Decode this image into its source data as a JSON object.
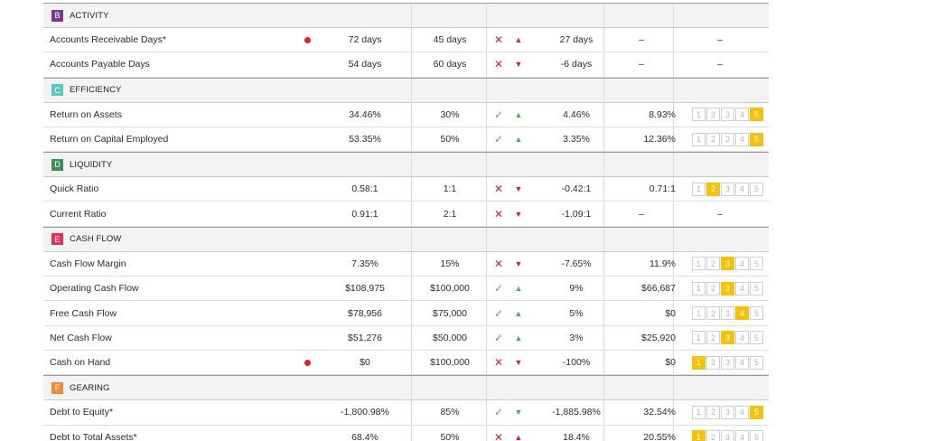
{
  "sections": [
    {
      "letter": "B",
      "title": "ACTIVITY",
      "color": "#7a3b8f",
      "rows": [
        {
          "name": "Accounts Receivable Days*",
          "alert": true,
          "actual": "72 days",
          "target": "45 days",
          "mark": "✕",
          "markType": "x",
          "arrow": "▲",
          "arrowType": "up-red",
          "variance": "27 days",
          "benchmark": "",
          "dash1": "–",
          "rating": null,
          "dash2": "–"
        },
        {
          "name": "Accounts Payable Days",
          "alert": false,
          "actual": "54 days",
          "target": "60 days",
          "mark": "✕",
          "markType": "x",
          "arrow": "▼",
          "arrowType": "down-red",
          "variance": "-6 days",
          "benchmark": "",
          "dash1": "–",
          "rating": null,
          "dash2": "–"
        }
      ]
    },
    {
      "letter": "C",
      "title": "EFFICIENCY",
      "color": "#5bc8c0",
      "rows": [
        {
          "name": "Return on Assets",
          "alert": false,
          "actual": "34.46%",
          "target": "30%",
          "mark": "✓",
          "markType": "c",
          "arrow": "▲",
          "arrowType": "up-green",
          "variance": "4.46%",
          "benchmark": "8.93%",
          "dash1": "",
          "rating": 5,
          "dash2": ""
        },
        {
          "name": "Return on Capital Employed",
          "alert": false,
          "actual": "53.35%",
          "target": "50%",
          "mark": "✓",
          "markType": "c",
          "arrow": "▲",
          "arrowType": "up-green",
          "variance": "3.35%",
          "benchmark": "12.36%",
          "dash1": "",
          "rating": 5,
          "dash2": ""
        }
      ]
    },
    {
      "letter": "D",
      "title": "LIQUIDITY",
      "color": "#3f8d5c",
      "rows": [
        {
          "name": "Quick Ratio",
          "alert": false,
          "actual": "0.58:1",
          "target": "1:1",
          "mark": "✕",
          "markType": "x",
          "arrow": "▼",
          "arrowType": "down-red",
          "variance": "-0.42:1",
          "benchmark": "0.71:1",
          "dash1": "",
          "rating": 2,
          "dash2": ""
        },
        {
          "name": "Current Ratio",
          "alert": false,
          "actual": "0.91:1",
          "target": "2:1",
          "mark": "✕",
          "markType": "x",
          "arrow": "▼",
          "arrowType": "down-red",
          "variance": "-1.09:1",
          "benchmark": "",
          "dash1": "–",
          "rating": null,
          "dash2": "–"
        }
      ]
    },
    {
      "letter": "E",
      "title": "CASH FLOW",
      "color": "#e0315a",
      "rows": [
        {
          "name": "Cash Flow Margin",
          "alert": false,
          "actual": "7.35%",
          "target": "15%",
          "mark": "✕",
          "markType": "x",
          "arrow": "▼",
          "arrowType": "down-red",
          "variance": "-7.65%",
          "benchmark": "11.9%",
          "dash1": "",
          "rating": 3,
          "dash2": ""
        },
        {
          "name": "Operating Cash Flow",
          "alert": false,
          "actual": "$108,975",
          "target": "$100,000",
          "mark": "✓",
          "markType": "c",
          "arrow": "▲",
          "arrowType": "up-green",
          "variance": "9%",
          "benchmark": "$66,687",
          "dash1": "",
          "rating": 3,
          "dash2": ""
        },
        {
          "name": "Free Cash Flow",
          "alert": false,
          "actual": "$78,956",
          "target": "$75,000",
          "mark": "✓",
          "markType": "c",
          "arrow": "▲",
          "arrowType": "up-green",
          "variance": "5%",
          "benchmark": "$0",
          "dash1": "",
          "rating": 4,
          "dash2": ""
        },
        {
          "name": "Net Cash Flow",
          "alert": false,
          "actual": "$51,276",
          "target": "$50,000",
          "mark": "✓",
          "markType": "c",
          "arrow": "▲",
          "arrowType": "up-green",
          "variance": "3%",
          "benchmark": "$25,920",
          "dash1": "",
          "rating": 3,
          "dash2": ""
        },
        {
          "name": "Cash on Hand",
          "alert": true,
          "actual": "$0",
          "target": "$100,000",
          "mark": "✕",
          "markType": "x",
          "arrow": "▼",
          "arrowType": "down-red",
          "variance": "-100%",
          "benchmark": "$0",
          "dash1": "",
          "rating": 1,
          "dash2": ""
        }
      ]
    },
    {
      "letter": "F",
      "title": "GEARING",
      "color": "#f08a3c",
      "rows": [
        {
          "name": "Debt to Equity*",
          "alert": false,
          "actual": "-1,800.98%",
          "target": "85%",
          "mark": "✓",
          "markType": "c",
          "arrow": "▼",
          "arrowType": "down-green",
          "variance": "-1,885.98%",
          "benchmark": "32.54%",
          "dash1": "",
          "rating": 5,
          "dash2": ""
        },
        {
          "name": "Debt to Total Assets*",
          "alert": false,
          "actual": "68.4%",
          "target": "50%",
          "mark": "✕",
          "markType": "x",
          "arrow": "▲",
          "arrowType": "up-red",
          "variance": "18.4%",
          "benchmark": "20.55%",
          "dash1": "",
          "rating": 1,
          "dash2": ""
        }
      ]
    }
  ],
  "rating_scale": [
    "1",
    "2",
    "3",
    "4",
    "5"
  ],
  "accent": "#f4c20d"
}
